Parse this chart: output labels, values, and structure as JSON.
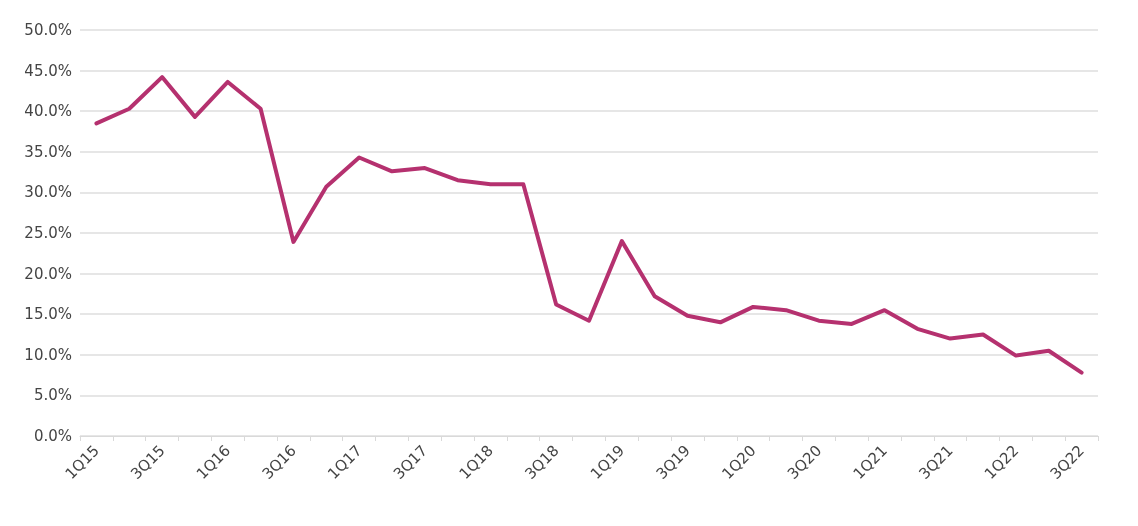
{
  "chart_data": {
    "type": "line",
    "categories": [
      "1Q15",
      null,
      "3Q15",
      null,
      "1Q16",
      null,
      "3Q16",
      null,
      "1Q17",
      null,
      "3Q17",
      null,
      "1Q18",
      null,
      "3Q18",
      null,
      "1Q19",
      null,
      "3Q19",
      null,
      "1Q20",
      null,
      "3Q20",
      null,
      "1Q21",
      null,
      "3Q21",
      null,
      "1Q22",
      null,
      "3Q22"
    ],
    "series": [
      {
        "color": "#b5316f",
        "values": [
          38.5,
          40.3,
          44.2,
          39.3,
          43.6,
          40.3,
          23.9,
          30.7,
          34.3,
          32.6,
          33.0,
          31.5,
          31.0,
          31.0,
          16.2,
          14.2,
          24.0,
          17.2,
          14.8,
          14.0,
          15.9,
          15.5,
          14.2,
          13.8,
          15.5,
          13.2,
          12.0,
          12.5,
          9.9,
          10.5,
          7.8
        ]
      }
    ],
    "ylim": [
      0,
      50
    ],
    "yticks": [
      {
        "value": 0,
        "label": "0.0%"
      },
      {
        "value": 5,
        "label": "5.0%"
      },
      {
        "value": 10,
        "label": "10.0%"
      },
      {
        "value": 15,
        "label": "15.0%"
      },
      {
        "value": 20,
        "label": "20.0%"
      },
      {
        "value": 25,
        "label": "25.0%"
      },
      {
        "value": 30,
        "label": "30.0%"
      },
      {
        "value": 35,
        "label": "35.0%"
      },
      {
        "value": 40,
        "label": "40.0%"
      },
      {
        "value": 45,
        "label": "45.0%"
      },
      {
        "value": 50,
        "label": "50.0%"
      }
    ],
    "grid": "y",
    "marker": "none",
    "line_style": "solid"
  }
}
